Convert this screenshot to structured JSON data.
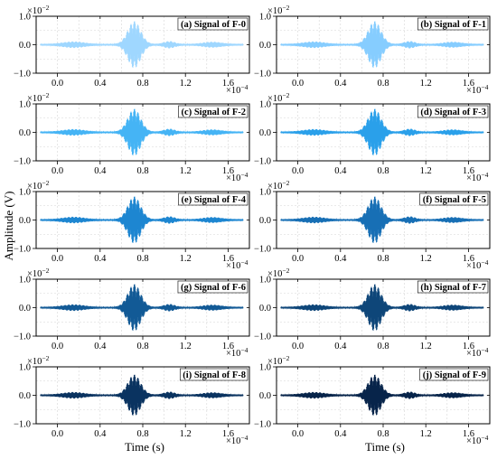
{
  "figure": {
    "ylabel": "Amplitude (V)",
    "xlabel": "Time (s)",
    "x_exponent_base": "×10",
    "x_exponent_power": "−4",
    "y_exponent_base": "×10",
    "y_exponent_power": "−2"
  },
  "chart_data": [
    {
      "type": "line",
      "title": "(a) Signal of F-0",
      "color": "#9fd7ff",
      "x_range": [
        -0.2,
        1.8
      ],
      "ylim": [
        -1.0,
        1.0
      ],
      "x_ticks": [
        0.0,
        0.4,
        0.8,
        1.2,
        1.6
      ],
      "x_tick_labels": [
        "0.0",
        "0.4",
        "0.8",
        "1.2",
        "1.6"
      ],
      "y_ticks": [
        -1.0,
        0.0,
        1.0
      ],
      "y_tick_labels": [
        "−1.0",
        "0.0",
        "1.0"
      ],
      "peak_amplitude": 0.8,
      "peak_time": 0.72,
      "grid": true
    },
    {
      "type": "line",
      "title": "(b) Signal of F-1",
      "color": "#86cdff",
      "x_range": [
        -0.2,
        1.8
      ],
      "ylim": [
        -1.0,
        1.0
      ],
      "x_ticks": [
        0.0,
        0.4,
        0.8,
        1.2,
        1.6
      ],
      "x_tick_labels": [
        "0.0",
        "0.4",
        "0.8",
        "1.2",
        "1.6"
      ],
      "y_ticks": [
        -1.0,
        0.0,
        1.0
      ],
      "y_tick_labels": [
        "−1.0",
        "0.0",
        "1.0"
      ],
      "peak_amplitude": 0.8,
      "peak_time": 0.72,
      "grid": true
    },
    {
      "type": "line",
      "title": "(c) Signal of F-2",
      "color": "#45b4f5",
      "x_range": [
        -0.2,
        1.8
      ],
      "ylim": [
        -1.0,
        1.0
      ],
      "x_ticks": [
        0.0,
        0.4,
        0.8,
        1.2,
        1.6
      ],
      "x_tick_labels": [
        "0.0",
        "0.4",
        "0.8",
        "1.2",
        "1.6"
      ],
      "y_ticks": [
        -1.0,
        0.0,
        1.0
      ],
      "y_tick_labels": [
        "−1.0",
        "0.0",
        "1.0"
      ],
      "peak_amplitude": 0.8,
      "peak_time": 0.72,
      "grid": true
    },
    {
      "type": "line",
      "title": "(d) Signal of F-3",
      "color": "#2aa0ea",
      "x_range": [
        -0.2,
        1.8
      ],
      "ylim": [
        -1.0,
        1.0
      ],
      "x_ticks": [
        0.0,
        0.4,
        0.8,
        1.2,
        1.6
      ],
      "x_tick_labels": [
        "0.0",
        "0.4",
        "0.8",
        "1.2",
        "1.6"
      ],
      "y_ticks": [
        -1.0,
        0.0,
        1.0
      ],
      "y_tick_labels": [
        "−1.0",
        "0.0",
        "1.0"
      ],
      "peak_amplitude": 0.8,
      "peak_time": 0.72,
      "grid": true
    },
    {
      "type": "line",
      "title": "(e) Signal of F-4",
      "color": "#1d86d1",
      "x_range": [
        -0.2,
        1.8
      ],
      "ylim": [
        -1.0,
        1.0
      ],
      "x_ticks": [
        0.0,
        0.4,
        0.8,
        1.2,
        1.6
      ],
      "x_tick_labels": [
        "0.0",
        "0.4",
        "0.8",
        "1.2",
        "1.6"
      ],
      "y_ticks": [
        -1.0,
        0.0,
        1.0
      ],
      "y_tick_labels": [
        "−1.0",
        "0.0",
        "1.0"
      ],
      "peak_amplitude": 0.8,
      "peak_time": 0.72,
      "grid": true
    },
    {
      "type": "line",
      "title": "(f) Signal of F-5",
      "color": "#176fb5",
      "x_range": [
        -0.2,
        1.8
      ],
      "ylim": [
        -1.0,
        1.0
      ],
      "x_ticks": [
        0.0,
        0.4,
        0.8,
        1.2,
        1.6
      ],
      "x_tick_labels": [
        "0.0",
        "0.4",
        "0.8",
        "1.2",
        "1.6"
      ],
      "y_ticks": [
        -1.0,
        0.0,
        1.0
      ],
      "y_tick_labels": [
        "−1.0",
        "0.0",
        "1.0"
      ],
      "peak_amplitude": 0.8,
      "peak_time": 0.72,
      "grid": true
    },
    {
      "type": "line",
      "title": "(g) Signal of F-6",
      "color": "#125a96",
      "x_range": [
        -0.2,
        1.8
      ],
      "ylim": [
        -1.0,
        1.0
      ],
      "x_ticks": [
        0.0,
        0.4,
        0.8,
        1.2,
        1.6
      ],
      "x_tick_labels": [
        "0.0",
        "0.4",
        "0.8",
        "1.2",
        "1.6"
      ],
      "y_ticks": [
        -1.0,
        0.0,
        1.0
      ],
      "y_tick_labels": [
        "−1.0",
        "0.0",
        "1.0"
      ],
      "peak_amplitude": 0.8,
      "peak_time": 0.72,
      "grid": true
    },
    {
      "type": "line",
      "title": "(h) Signal of F-7",
      "color": "#0e4679",
      "x_range": [
        -0.2,
        1.8
      ],
      "ylim": [
        -1.0,
        1.0
      ],
      "x_ticks": [
        0.0,
        0.4,
        0.8,
        1.2,
        1.6
      ],
      "x_tick_labels": [
        "0.0",
        "0.4",
        "0.8",
        "1.2",
        "1.6"
      ],
      "y_ticks": [
        -1.0,
        0.0,
        1.0
      ],
      "y_tick_labels": [
        "−1.0",
        "0.0",
        "1.0"
      ],
      "peak_amplitude": 0.8,
      "peak_time": 0.72,
      "grid": true
    },
    {
      "type": "line",
      "title": "(i) Signal of F-8",
      "color": "#0a3360",
      "x_range": [
        -0.2,
        1.8
      ],
      "ylim": [
        -1.0,
        1.0
      ],
      "x_ticks": [
        0.0,
        0.4,
        0.8,
        1.2,
        1.6
      ],
      "x_tick_labels": [
        "0.0",
        "0.4",
        "0.8",
        "1.2",
        "1.6"
      ],
      "y_ticks": [
        -1.0,
        0.0,
        1.0
      ],
      "y_tick_labels": [
        "−1.0",
        "0.0",
        "1.0"
      ],
      "peak_amplitude": 0.7,
      "peak_time": 0.72,
      "grid": true
    },
    {
      "type": "line",
      "title": "(j) Signal of F-9",
      "color": "#07244a",
      "x_range": [
        -0.2,
        1.8
      ],
      "ylim": [
        -1.0,
        1.0
      ],
      "x_ticks": [
        0.0,
        0.4,
        0.8,
        1.2,
        1.6
      ],
      "x_tick_labels": [
        "0.0",
        "0.4",
        "0.8",
        "1.2",
        "1.6"
      ],
      "y_ticks": [
        -1.0,
        0.0,
        1.0
      ],
      "y_tick_labels": [
        "−1.0",
        "0.0",
        "1.0"
      ],
      "peak_amplitude": 0.7,
      "peak_time": 0.72,
      "grid": true
    }
  ]
}
